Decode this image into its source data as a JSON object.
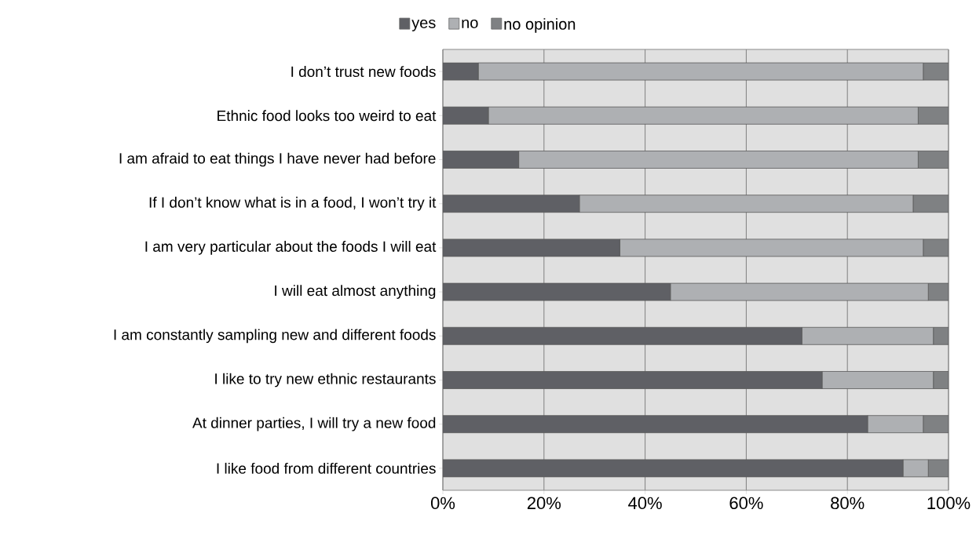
{
  "chart_data": {
    "type": "bar",
    "orientation": "horizontal",
    "stacked": true,
    "categories": [
      "I don’t trust new foods",
      "Ethnic food looks too weird to eat",
      "I am afraid to eat things I have never had before",
      "If I don’t know what is in a food, I won’t try it",
      "I am very particular about the foods I will eat",
      "I will eat almost anything",
      "I am constantly sampling new and different foods",
      "I like to try new ethnic restaurants",
      "At dinner parties, I will try a new food",
      "I like food from different countries"
    ],
    "series": [
      {
        "name": "yes",
        "color": "#5f6065",
        "values": [
          7,
          9,
          15,
          27,
          35,
          45,
          71,
          75,
          84,
          91
        ]
      },
      {
        "name": "no",
        "color": "#aeb0b3",
        "values": [
          88,
          85,
          79,
          66,
          60,
          51,
          26,
          22,
          11,
          5
        ]
      },
      {
        "name": "no opinion",
        "color": "#7f8183",
        "values": [
          5,
          6,
          6,
          7,
          5,
          4,
          3,
          3,
          5,
          4
        ]
      }
    ],
    "xlim": [
      0,
      100
    ],
    "xticks": [
      {
        "value": 0,
        "label": "0%"
      },
      {
        "value": 20,
        "label": "20%"
      },
      {
        "value": 40,
        "label": "40%"
      },
      {
        "value": 60,
        "label": "60%"
      },
      {
        "value": 80,
        "label": "80%"
      },
      {
        "value": 100,
        "label": "100%"
      }
    ],
    "grid": "x",
    "legend": "top"
  }
}
